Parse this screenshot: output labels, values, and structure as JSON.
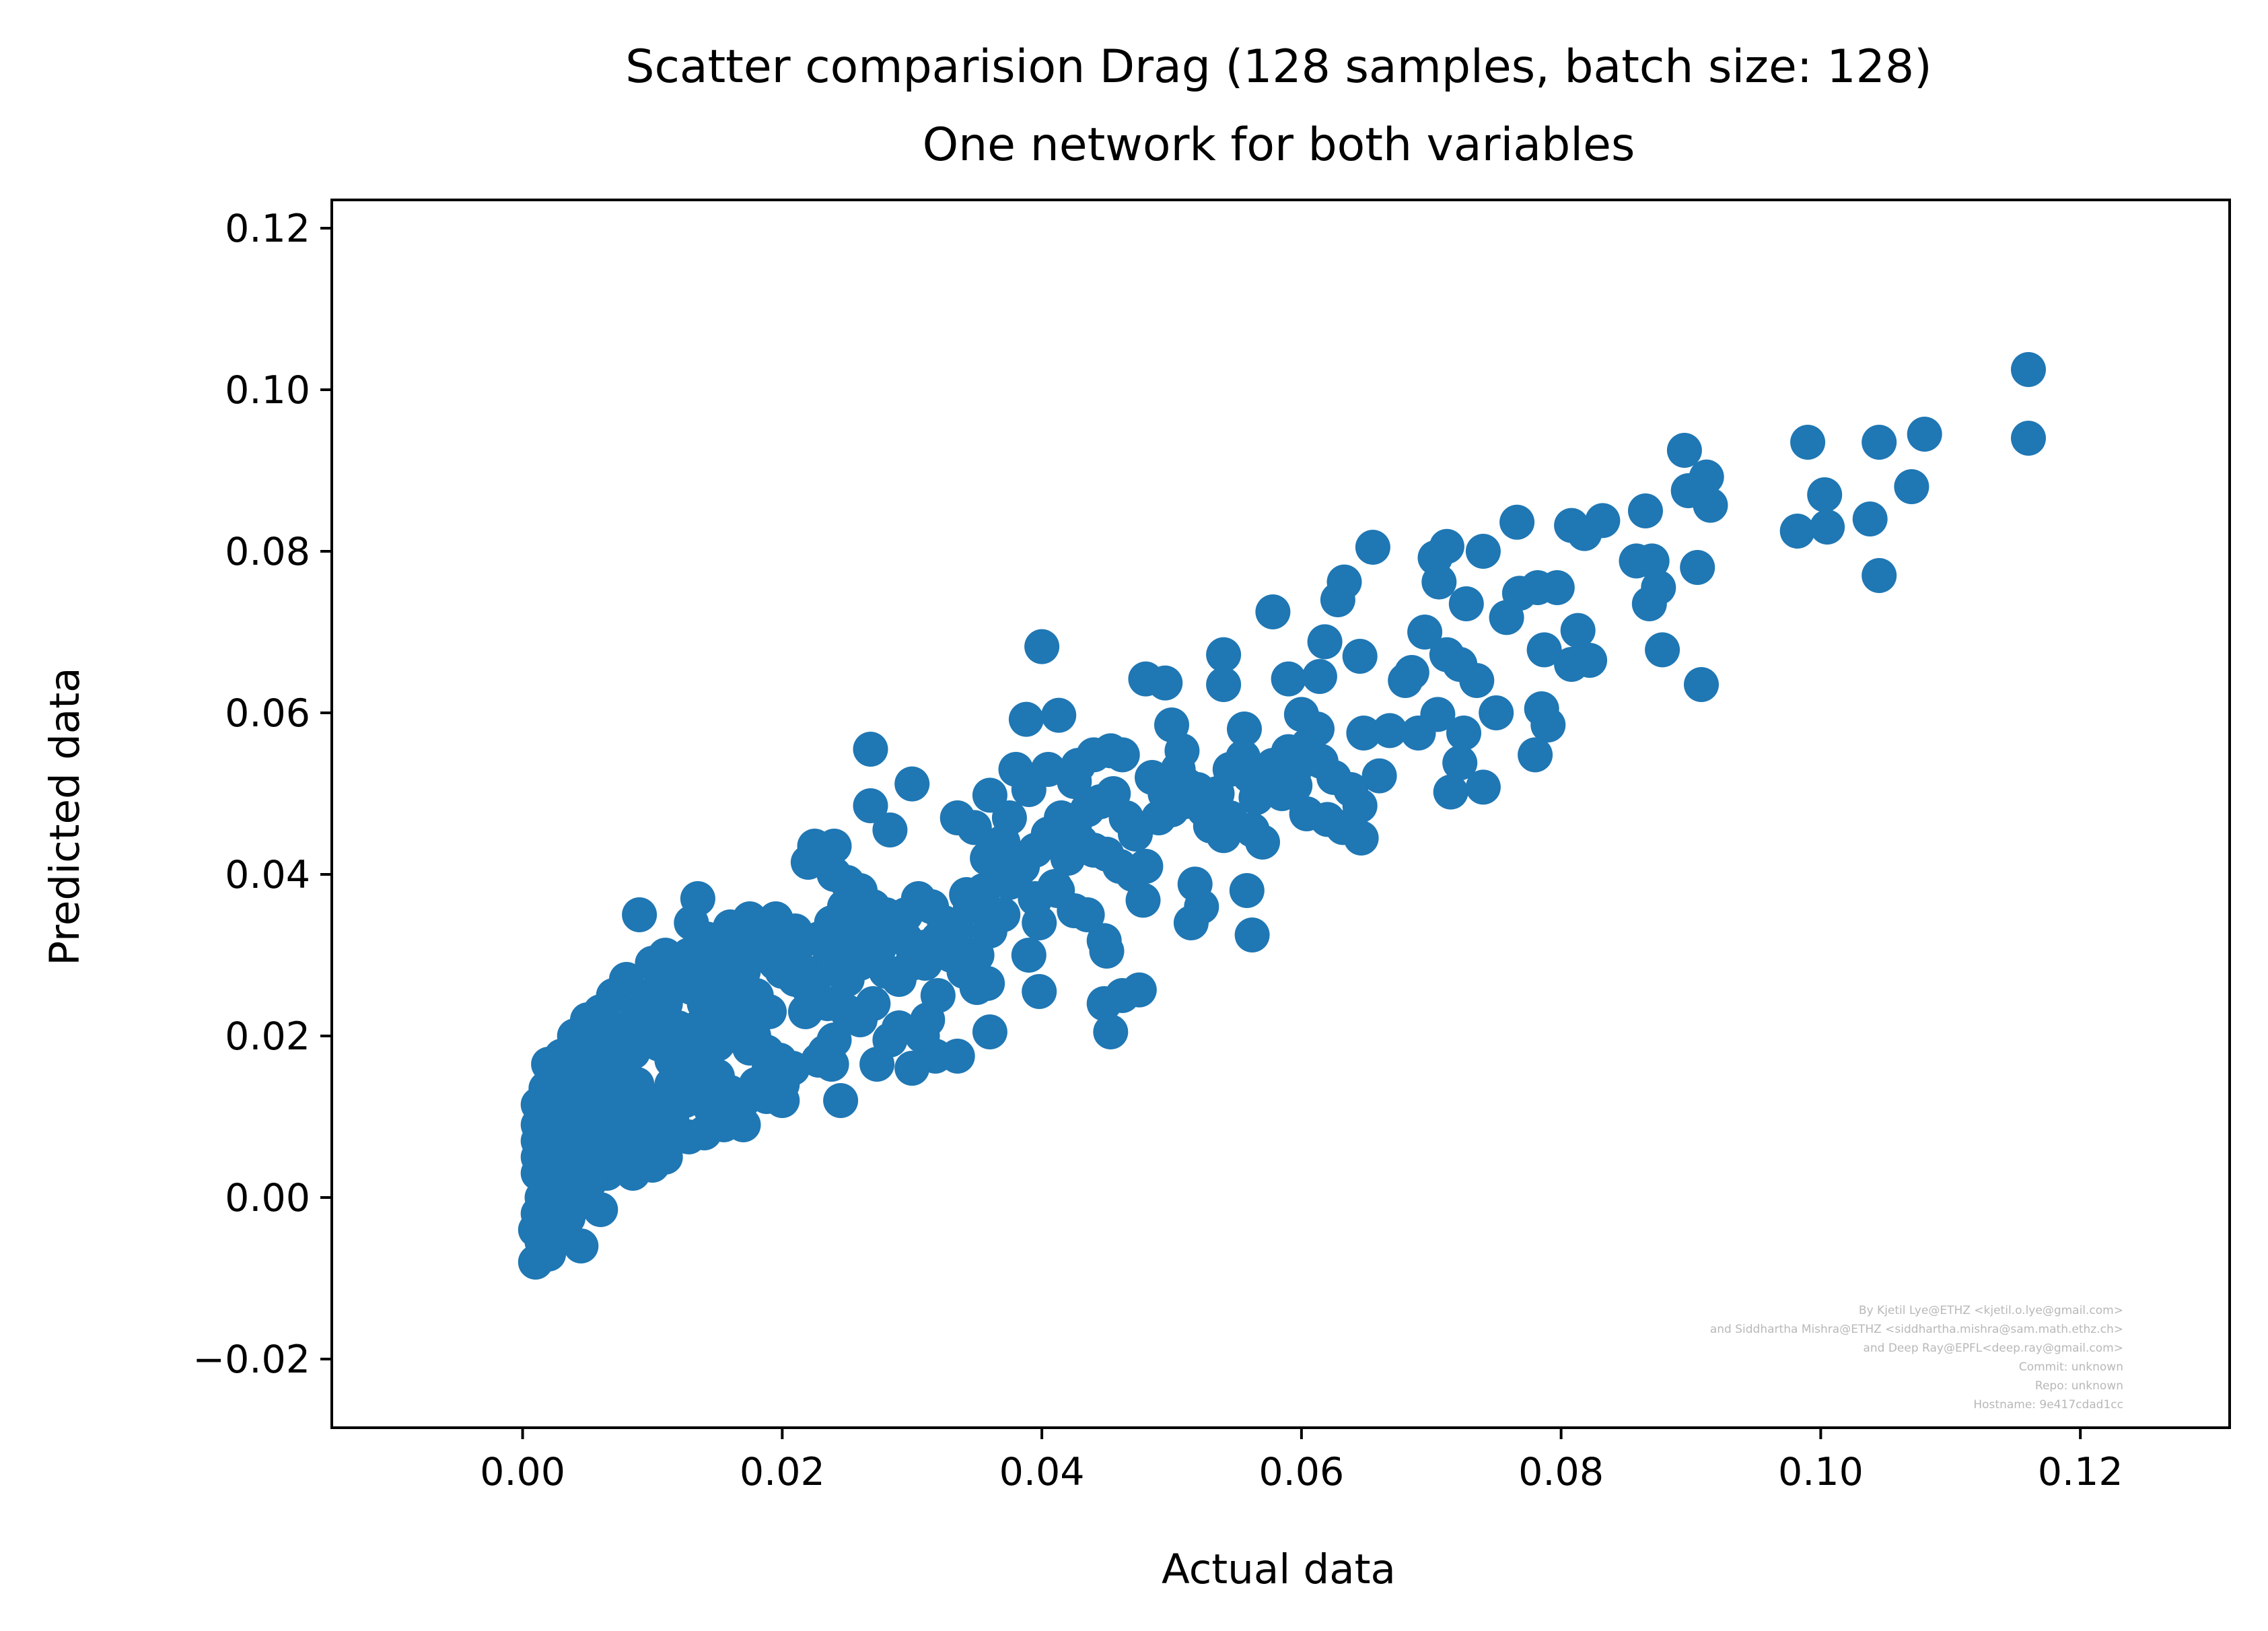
{
  "chart_data": {
    "type": "scatter",
    "title": "Scatter comparision Drag (128 samples, batch size: 128)",
    "subtitle": "One network for both variables",
    "xlabel": "Actual data",
    "ylabel": "Predicted data",
    "xlim": [
      -0.0147,
      0.1315
    ],
    "ylim": [
      -0.0285,
      0.1235
    ],
    "x_ticks": [
      0.0,
      0.02,
      0.04,
      0.06,
      0.08,
      0.1,
      0.12
    ],
    "x_tick_labels": [
      "0.00",
      "0.02",
      "0.04",
      "0.06",
      "0.08",
      "0.10",
      "0.12"
    ],
    "y_ticks": [
      -0.02,
      0.0,
      0.02,
      0.04,
      0.06,
      0.08,
      0.1,
      0.12
    ],
    "y_tick_labels": [
      "−0.02",
      "0.00",
      "0.02",
      "0.04",
      "0.06",
      "0.08",
      "0.10",
      "0.12"
    ],
    "grid": false,
    "marker_color": "#1f77b4",
    "points": [
      [
        0.116,
        0.1025
      ],
      [
        0.116,
        0.094
      ],
      [
        0.108,
        0.0945
      ],
      [
        0.1045,
        0.0935
      ],
      [
        0.099,
        0.0935
      ],
      [
        0.107,
        0.088
      ],
      [
        0.1003,
        0.087
      ],
      [
        0.0912,
        0.0892
      ],
      [
        0.0895,
        0.0925
      ],
      [
        0.0898,
        0.0875
      ],
      [
        0.0915,
        0.0857
      ],
      [
        0.0982,
        0.0825
      ],
      [
        0.1005,
        0.083
      ],
      [
        0.1038,
        0.084
      ],
      [
        0.1045,
        0.077
      ],
      [
        0.0865,
        0.085
      ],
      [
        0.0832,
        0.0838
      ],
      [
        0.0808,
        0.0832
      ],
      [
        0.0818,
        0.0822
      ],
      [
        0.0766,
        0.0836
      ],
      [
        0.0905,
        0.078
      ],
      [
        0.0858,
        0.0788
      ],
      [
        0.087,
        0.0788
      ],
      [
        0.0875,
        0.0755
      ],
      [
        0.0868,
        0.0735
      ],
      [
        0.0878,
        0.0678
      ],
      [
        0.0908,
        0.0635
      ],
      [
        0.0712,
        0.0806
      ],
      [
        0.0703,
        0.0792
      ],
      [
        0.074,
        0.08
      ],
      [
        0.0655,
        0.0805
      ],
      [
        0.0628,
        0.074
      ],
      [
        0.0633,
        0.0762
      ],
      [
        0.0706,
        0.0762
      ],
      [
        0.0727,
        0.0735
      ],
      [
        0.0758,
        0.0718
      ],
      [
        0.0768,
        0.0748
      ],
      [
        0.0782,
        0.0755
      ],
      [
        0.0797,
        0.0755
      ],
      [
        0.0813,
        0.0702
      ],
      [
        0.0787,
        0.0678
      ],
      [
        0.0822,
        0.0665
      ],
      [
        0.0808,
        0.066
      ],
      [
        0.0695,
        0.07
      ],
      [
        0.0712,
        0.0672
      ],
      [
        0.0722,
        0.066
      ],
      [
        0.0735,
        0.064
      ],
      [
        0.0685,
        0.065
      ],
      [
        0.068,
        0.064
      ],
      [
        0.0645,
        0.067
      ],
      [
        0.0618,
        0.0688
      ],
      [
        0.0578,
        0.0725
      ],
      [
        0.054,
        0.0672
      ],
      [
        0.054,
        0.0635
      ],
      [
        0.059,
        0.0642
      ],
      [
        0.0614,
        0.0645
      ],
      [
        0.075,
        0.06
      ],
      [
        0.0785,
        0.0605
      ],
      [
        0.079,
        0.0585
      ],
      [
        0.078,
        0.0548
      ],
      [
        0.074,
        0.0508
      ],
      [
        0.0715,
        0.0502
      ],
      [
        0.0722,
        0.0538
      ],
      [
        0.0725,
        0.0575
      ],
      [
        0.0705,
        0.0598
      ],
      [
        0.069,
        0.0575
      ],
      [
        0.0668,
        0.0578
      ],
      [
        0.0648,
        0.0575
      ],
      [
        0.066,
        0.0522
      ],
      [
        0.0632,
        0.0458
      ],
      [
        0.0646,
        0.0445
      ],
      [
        0.0645,
        0.0485
      ],
      [
        0.06,
        0.0598
      ],
      [
        0.0612,
        0.058
      ],
      [
        0.059,
        0.0552
      ],
      [
        0.0578,
        0.0535
      ],
      [
        0.056,
        0.0522
      ],
      [
        0.0595,
        0.051
      ],
      [
        0.0604,
        0.0475
      ],
      [
        0.062,
        0.0468
      ],
      [
        0.0562,
        0.0455
      ],
      [
        0.057,
        0.044
      ],
      [
        0.0556,
        0.058
      ],
      [
        0.0545,
        0.047
      ],
      [
        0.054,
        0.0448
      ],
      [
        0.053,
        0.046
      ],
      [
        0.05,
        0.0585
      ],
      [
        0.0508,
        0.0553
      ],
      [
        0.048,
        0.0642
      ],
      [
        0.0495,
        0.0637
      ],
      [
        0.0453,
        0.0553
      ],
      [
        0.0462,
        0.0548
      ],
      [
        0.044,
        0.0548
      ],
      [
        0.0428,
        0.0535
      ],
      [
        0.0425,
        0.0515
      ],
      [
        0.04,
        0.0682
      ],
      [
        0.0388,
        0.0592
      ],
      [
        0.0413,
        0.0597
      ],
      [
        0.039,
        0.0505
      ],
      [
        0.0405,
        0.053
      ],
      [
        0.038,
        0.053
      ],
      [
        0.036,
        0.0498
      ],
      [
        0.0375,
        0.047
      ],
      [
        0.0348,
        0.0458
      ],
      [
        0.0335,
        0.047
      ],
      [
        0.0342,
        0.0375
      ],
      [
        0.0358,
        0.042
      ],
      [
        0.037,
        0.044
      ],
      [
        0.0382,
        0.0405
      ],
      [
        0.0395,
        0.037
      ],
      [
        0.0412,
        0.038
      ],
      [
        0.042,
        0.042
      ],
      [
        0.043,
        0.044
      ],
      [
        0.044,
        0.043
      ],
      [
        0.045,
        0.0425
      ],
      [
        0.046,
        0.041
      ],
      [
        0.047,
        0.04
      ],
      [
        0.0478,
        0.0368
      ],
      [
        0.048,
        0.041
      ],
      [
        0.049,
        0.047
      ],
      [
        0.05,
        0.048
      ],
      [
        0.051,
        0.049
      ],
      [
        0.052,
        0.0505
      ],
      [
        0.0518,
        0.0388
      ],
      [
        0.0523,
        0.036
      ],
      [
        0.0515,
        0.034
      ],
      [
        0.0558,
        0.038
      ],
      [
        0.0562,
        0.0325
      ],
      [
        0.045,
        0.0305
      ],
      [
        0.0448,
        0.0318
      ],
      [
        0.0435,
        0.035
      ],
      [
        0.0425,
        0.0355
      ],
      [
        0.041,
        0.0385
      ],
      [
        0.0398,
        0.034
      ],
      [
        0.039,
        0.03
      ],
      [
        0.0398,
        0.0255
      ],
      [
        0.0448,
        0.024
      ],
      [
        0.0462,
        0.025
      ],
      [
        0.0475,
        0.0257
      ],
      [
        0.0453,
        0.0205
      ],
      [
        0.037,
        0.035
      ],
      [
        0.036,
        0.033
      ],
      [
        0.035,
        0.03
      ],
      [
        0.036,
        0.0205
      ],
      [
        0.0358,
        0.0265
      ],
      [
        0.0335,
        0.0175
      ],
      [
        0.0318,
        0.0175
      ],
      [
        0.0308,
        0.02
      ],
      [
        0.03,
        0.016
      ],
      [
        0.029,
        0.021
      ],
      [
        0.0283,
        0.0195
      ],
      [
        0.0273,
        0.0165
      ],
      [
        0.024,
        0.0195
      ],
      [
        0.0245,
        0.012
      ],
      [
        0.0238,
        0.0165
      ],
      [
        0.0233,
        0.018
      ],
      [
        0.0228,
        0.017
      ],
      [
        0.0312,
        0.022
      ],
      [
        0.032,
        0.025
      ],
      [
        0.031,
        0.029
      ],
      [
        0.03,
        0.031
      ],
      [
        0.0295,
        0.032
      ],
      [
        0.029,
        0.034
      ],
      [
        0.028,
        0.035
      ],
      [
        0.027,
        0.036
      ],
      [
        0.026,
        0.038
      ],
      [
        0.025,
        0.039
      ],
      [
        0.024,
        0.04
      ],
      [
        0.023,
        0.042
      ],
      [
        0.022,
        0.0415
      ],
      [
        0.0268,
        0.0555
      ],
      [
        0.0268,
        0.0485
      ],
      [
        0.03,
        0.0512
      ],
      [
        0.0283,
        0.0455
      ],
      [
        0.024,
        0.0435
      ],
      [
        0.0225,
        0.0435
      ],
      [
        0.021,
        0.033
      ],
      [
        0.02,
        0.031
      ],
      [
        0.0195,
        0.029
      ],
      [
        0.018,
        0.03
      ],
      [
        0.017,
        0.028
      ],
      [
        0.016,
        0.026
      ],
      [
        0.015,
        0.025
      ],
      [
        0.014,
        0.024
      ],
      [
        0.013,
        0.026
      ],
      [
        0.012,
        0.028
      ],
      [
        0.011,
        0.03
      ],
      [
        0.01,
        0.029
      ],
      [
        0.009,
        0.035
      ],
      [
        0.013,
        0.034
      ],
      [
        0.0135,
        0.037
      ],
      [
        0.016,
        0.0335
      ],
      [
        0.0175,
        0.0345
      ],
      [
        0.0195,
        0.0345
      ],
      [
        0.021,
        0.0305
      ],
      [
        0.008,
        0.027
      ],
      [
        0.007,
        0.025
      ],
      [
        0.006,
        0.023
      ],
      [
        0.005,
        0.022
      ],
      [
        0.004,
        0.02
      ],
      [
        0.0045,
        0.017
      ],
      [
        0.003,
        0.0175
      ],
      [
        0.002,
        0.0165
      ],
      [
        0.003,
        0.015
      ],
      [
        0.004,
        0.014
      ],
      [
        0.005,
        0.013
      ],
      [
        0.006,
        0.011
      ],
      [
        0.007,
        0.01
      ],
      [
        0.008,
        0.008
      ],
      [
        0.009,
        0.006
      ],
      [
        0.0085,
        0.003
      ],
      [
        0.0065,
        0.003
      ],
      [
        0.006,
        -0.0015
      ],
      [
        0.0045,
        -0.0005
      ],
      [
        0.004,
        0.0
      ],
      [
        0.0035,
        -0.0025
      ],
      [
        0.003,
        -0.004
      ],
      [
        0.002,
        -0.0045
      ],
      [
        0.0015,
        -0.0055
      ],
      [
        0.001,
        -0.008
      ],
      [
        0.002,
        -0.007
      ],
      [
        0.0045,
        -0.006
      ],
      [
        0.001,
        -0.004
      ],
      [
        0.0012,
        -0.002
      ],
      [
        0.0015,
        0.0
      ],
      [
        0.0018,
        0.002
      ],
      [
        0.002,
        0.004
      ],
      [
        0.0022,
        0.006
      ],
      [
        0.0025,
        0.008
      ],
      [
        0.0028,
        0.01
      ],
      [
        0.0012,
        0.009
      ],
      [
        0.0012,
        0.007
      ],
      [
        0.0012,
        0.005
      ],
      [
        0.0012,
        0.003
      ],
      [
        0.0015,
        0.011
      ],
      [
        0.0033,
        0.012
      ],
      [
        0.0038,
        0.009
      ],
      [
        0.0042,
        0.006
      ],
      [
        0.0048,
        0.004
      ],
      [
        0.0052,
        0.002
      ],
      [
        0.0055,
        0.008
      ],
      [
        0.006,
        0.006
      ],
      [
        0.0065,
        0.015
      ],
      [
        0.0075,
        0.016
      ],
      [
        0.0085,
        0.018
      ],
      [
        0.0095,
        0.02
      ],
      [
        0.0105,
        0.019
      ],
      [
        0.0115,
        0.017
      ],
      [
        0.0125,
        0.015
      ],
      [
        0.0135,
        0.013
      ],
      [
        0.0145,
        0.011
      ],
      [
        0.0155,
        0.009
      ],
      [
        0.0128,
        0.0075
      ],
      [
        0.0108,
        0.01
      ],
      [
        0.0098,
        0.012
      ],
      [
        0.0088,
        0.014
      ],
      [
        0.0078,
        0.012
      ],
      [
        0.0068,
        0.009
      ],
      [
        0.01,
        0.022
      ],
      [
        0.011,
        0.024
      ],
      [
        0.012,
        0.021
      ],
      [
        0.013,
        0.019
      ],
      [
        0.014,
        0.017
      ],
      [
        0.015,
        0.015
      ],
      [
        0.016,
        0.013
      ],
      [
        0.017,
        0.012
      ],
      [
        0.018,
        0.014
      ],
      [
        0.019,
        0.016
      ],
      [
        0.02,
        0.014
      ],
      [
        0.02,
        0.012
      ],
      [
        0.0188,
        0.0125
      ],
      [
        0.0175,
        0.0185
      ],
      [
        0.0165,
        0.02
      ],
      [
        0.0155,
        0.022
      ],
      [
        0.0145,
        0.023
      ],
      [
        0.0135,
        0.021
      ],
      [
        0.015,
        0.028
      ],
      [
        0.016,
        0.03
      ],
      [
        0.017,
        0.031
      ],
      [
        0.018,
        0.025
      ],
      [
        0.019,
        0.023
      ],
      [
        0.02,
        0.028
      ],
      [
        0.021,
        0.027
      ],
      [
        0.022,
        0.026
      ],
      [
        0.023,
        0.028
      ],
      [
        0.024,
        0.029
      ],
      [
        0.025,
        0.027
      ],
      [
        0.026,
        0.029
      ],
      [
        0.027,
        0.03
      ],
      [
        0.028,
        0.028
      ],
      [
        0.029,
        0.027
      ],
      [
        0.03,
        0.029
      ],
      [
        0.031,
        0.031
      ],
      [
        0.032,
        0.032
      ],
      [
        0.033,
        0.03
      ],
      [
        0.034,
        0.028
      ],
      [
        0.035,
        0.026
      ],
      [
        0.0218,
        0.023
      ],
      [
        0.0225,
        0.025
      ],
      [
        0.0235,
        0.024
      ],
      [
        0.025,
        0.023
      ],
      [
        0.026,
        0.022
      ],
      [
        0.027,
        0.024
      ],
      [
        0.0245,
        0.032
      ],
      [
        0.0255,
        0.034
      ],
      [
        0.0265,
        0.032
      ],
      [
        0.0275,
        0.031
      ],
      [
        0.0285,
        0.033
      ],
      [
        0.0295,
        0.035
      ],
      [
        0.0305,
        0.037
      ],
      [
        0.0315,
        0.036
      ],
      [
        0.0325,
        0.034
      ],
      [
        0.0335,
        0.033
      ],
      [
        0.0345,
        0.036
      ],
      [
        0.0355,
        0.038
      ],
      [
        0.0365,
        0.04
      ],
      [
        0.0375,
        0.039
      ],
      [
        0.0385,
        0.041
      ],
      [
        0.0395,
        0.043
      ],
      [
        0.0405,
        0.045
      ],
      [
        0.0415,
        0.047
      ],
      [
        0.0425,
        0.046
      ],
      [
        0.0435,
        0.048
      ],
      [
        0.0445,
        0.049
      ],
      [
        0.0455,
        0.05
      ],
      [
        0.0465,
        0.047
      ],
      [
        0.0472,
        0.045
      ],
      [
        0.0485,
        0.052
      ],
      [
        0.0495,
        0.05
      ],
      [
        0.0505,
        0.053
      ],
      [
        0.0512,
        0.051
      ],
      [
        0.0525,
        0.048
      ],
      [
        0.0535,
        0.05
      ],
      [
        0.0545,
        0.053
      ],
      [
        0.0555,
        0.0545
      ],
      [
        0.0565,
        0.0495
      ],
      [
        0.0575,
        0.051
      ],
      [
        0.0585,
        0.05
      ],
      [
        0.0595,
        0.053
      ],
      [
        0.0605,
        0.056
      ],
      [
        0.0615,
        0.054
      ],
      [
        0.0625,
        0.052
      ],
      [
        0.0638,
        0.0505
      ],
      [
        0.0115,
        0.014
      ],
      [
        0.0125,
        0.012
      ],
      [
        0.0095,
        0.009
      ],
      [
        0.0105,
        0.0075
      ],
      [
        0.0115,
        0.0095
      ],
      [
        0.014,
        0.008
      ],
      [
        0.016,
        0.01
      ],
      [
        0.017,
        0.009
      ],
      [
        0.015,
        0.019
      ],
      [
        0.011,
        0.005
      ],
      [
        0.01,
        0.004
      ],
      [
        0.0075,
        0.0045
      ],
      [
        0.0032,
        0.003
      ],
      [
        0.0028,
        0.006
      ],
      [
        0.0035,
        0.008
      ],
      [
        0.0042,
        0.01
      ],
      [
        0.0038,
        0.013
      ],
      [
        0.0025,
        0.012
      ],
      [
        0.0018,
        0.0135
      ],
      [
        0.0012,
        0.0115
      ],
      [
        0.0055,
        0.0185
      ],
      [
        0.0062,
        0.02
      ],
      [
        0.007,
        0.018
      ],
      [
        0.008,
        0.021
      ],
      [
        0.009,
        0.023
      ],
      [
        0.0098,
        0.025
      ],
      [
        0.0108,
        0.027
      ],
      [
        0.0118,
        0.029
      ],
      [
        0.0128,
        0.03
      ],
      [
        0.0138,
        0.028
      ],
      [
        0.0148,
        0.026
      ],
      [
        0.0158,
        0.024
      ],
      [
        0.0168,
        0.022
      ],
      [
        0.0178,
        0.02
      ],
      [
        0.0188,
        0.018
      ],
      [
        0.0198,
        0.017
      ],
      [
        0.0208,
        0.016
      ],
      [
        0.0228,
        0.032
      ],
      [
        0.0238,
        0.034
      ],
      [
        0.0248,
        0.036
      ],
      [
        0.0258,
        0.03
      ],
      [
        0.0278,
        0.033
      ],
      [
        0.0198,
        0.0325
      ],
      [
        0.0188,
        0.031
      ],
      [
        0.0165,
        0.032
      ],
      [
        0.0142,
        0.032
      ]
    ],
    "credit_lines": [
      "By Kjetil Lye@ETHZ <kjetil.o.lye@gmail.com>",
      "and Siddhartha Mishra@ETHZ <siddhartha.mishra@sam.math.ethz.ch>",
      "and Deep Ray@EPFL<deep.ray@gmail.com>",
      "Commit: unknown",
      "Repo: unknown",
      "Hostname: 9e417cdad1cc"
    ]
  }
}
